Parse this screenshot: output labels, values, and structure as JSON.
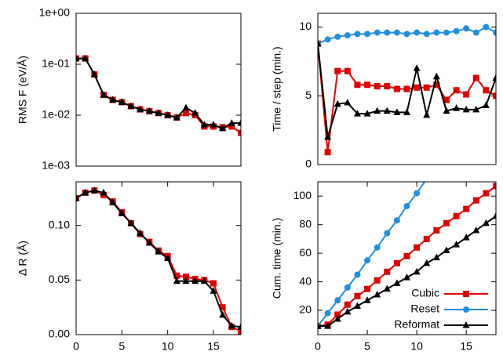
{
  "chart_data": [
    {
      "type": "line",
      "ylabel": "RMS F (eV/Å)",
      "log_y": true,
      "x": [
        0,
        1,
        2,
        3,
        4,
        5,
        6,
        7,
        8,
        9,
        10,
        11,
        12,
        13,
        14,
        15,
        16,
        17,
        18
      ],
      "xlim": [
        0,
        18
      ],
      "ylim": [
        0.001,
        1
      ],
      "yticks": [
        {
          "value": 1,
          "label": "1e+00"
        },
        {
          "value": 0.1,
          "label": "1e-01"
        },
        {
          "value": 0.01,
          "label": "1e-02"
        },
        {
          "value": 0.001,
          "label": "1e-03"
        }
      ],
      "series": [
        {
          "color": "#e00000",
          "marker": "square",
          "values": [
            0.13,
            0.13,
            0.063,
            0.025,
            0.02,
            0.018,
            0.015,
            0.013,
            0.012,
            0.011,
            0.01,
            0.009,
            0.011,
            0.01,
            0.006,
            0.006,
            0.0058,
            0.006,
            0.0045
          ]
        },
        {
          "color": "#000000",
          "marker": "triangle",
          "values": [
            0.13,
            0.13,
            0.063,
            0.025,
            0.02,
            0.018,
            0.015,
            0.013,
            0.012,
            0.011,
            0.01,
            0.009,
            0.014,
            0.011,
            0.0065,
            0.0065,
            0.0055,
            0.007,
            0.007
          ]
        }
      ]
    },
    {
      "type": "line",
      "ylabel": "Time / step (min.)",
      "x": [
        0,
        1,
        2,
        3,
        4,
        5,
        6,
        7,
        8,
        9,
        10,
        11,
        12,
        13,
        14,
        15,
        16,
        17,
        18
      ],
      "xlim": [
        0,
        18
      ],
      "ylim": [
        0,
        11
      ],
      "yticks": [
        0,
        5,
        10
      ],
      "series": [
        {
          "color": "#e00000",
          "marker": "square",
          "values": [
            8.8,
            0.9,
            6.8,
            6.8,
            5.8,
            5.8,
            5.7,
            5.7,
            5.5,
            5.5,
            5.6,
            5.6,
            5.8,
            4.7,
            5.4,
            5.1,
            6.3,
            5.4,
            5.0
          ]
        },
        {
          "color": "#1f8fe0",
          "marker": "circle",
          "values": [
            8.8,
            9.1,
            9.3,
            9.4,
            9.5,
            9.5,
            9.6,
            9.6,
            9.6,
            9.5,
            9.6,
            9.5,
            9.6,
            9.6,
            9.7,
            9.9,
            9.6,
            10.0,
            9.6
          ]
        },
        {
          "color": "#000000",
          "marker": "triangle",
          "values": [
            8.8,
            2.0,
            4.4,
            4.5,
            3.7,
            3.7,
            3.9,
            3.9,
            3.8,
            3.8,
            7.0,
            3.6,
            6.4,
            3.9,
            4.1,
            4.0,
            4.0,
            4.3,
            6.3
          ]
        }
      ]
    },
    {
      "type": "line",
      "ylabel": "Δ R (Å)",
      "x": [
        0,
        1,
        2,
        3,
        4,
        5,
        6,
        7,
        8,
        9,
        10,
        11,
        12,
        13,
        14,
        15,
        16,
        17,
        18
      ],
      "xlim": [
        0,
        18
      ],
      "xticks": [
        0,
        5,
        10,
        15
      ],
      "ylim": [
        0,
        0.14
      ],
      "yticks": [
        {
          "value": 0,
          "label": "0.00"
        },
        {
          "value": 0.05,
          "label": "0.05"
        },
        {
          "value": 0.1,
          "label": "0.10"
        }
      ],
      "series": [
        {
          "color": "#e00000",
          "marker": "square",
          "values": [
            0.125,
            0.13,
            0.132,
            0.128,
            0.122,
            0.112,
            0.102,
            0.092,
            0.085,
            0.077,
            0.072,
            0.054,
            0.053,
            0.051,
            0.05,
            0.047,
            0.025,
            0.007,
            0.003
          ]
        },
        {
          "color": "#000000",
          "marker": "triangle",
          "values": [
            0.125,
            0.13,
            0.132,
            0.13,
            0.121,
            0.111,
            0.102,
            0.093,
            0.084,
            0.076,
            0.07,
            0.049,
            0.049,
            0.049,
            0.049,
            0.04,
            0.018,
            0.008,
            0.007
          ]
        }
      ]
    },
    {
      "type": "line",
      "ylabel": "Cum. time (min.)",
      "legend": "lower right",
      "x": [
        0,
        1,
        2,
        3,
        4,
        5,
        6,
        7,
        8,
        9,
        10,
        11,
        12,
        13,
        14,
        15,
        16,
        17,
        18
      ],
      "xlim": [
        0,
        18
      ],
      "xticks": [
        0,
        5,
        10,
        15
      ],
      "ylim": [
        3,
        110
      ],
      "yticks": [
        20,
        40,
        60,
        80,
        100
      ],
      "series": [
        {
          "name": "Cubic",
          "color": "#e00000",
          "marker": "square",
          "values": [
            9,
            10,
            17,
            24,
            30,
            35,
            41,
            47,
            53,
            58,
            64,
            70,
            76,
            81,
            86,
            91,
            97,
            102,
            107
          ]
        },
        {
          "name": "Reset",
          "color": "#1f8fe0",
          "marker": "circle",
          "values": [
            9,
            18,
            27,
            36,
            45,
            55,
            64,
            74,
            83,
            93,
            102,
            112,
            null,
            null,
            null,
            null,
            null,
            null,
            null
          ]
        },
        {
          "name": "Reformat",
          "color": "#000000",
          "marker": "triangle",
          "values": [
            9,
            9,
            14,
            19,
            23,
            27,
            31,
            35,
            39,
            43,
            47,
            53,
            57,
            62,
            66,
            71,
            76,
            81,
            86
          ]
        }
      ]
    }
  ]
}
